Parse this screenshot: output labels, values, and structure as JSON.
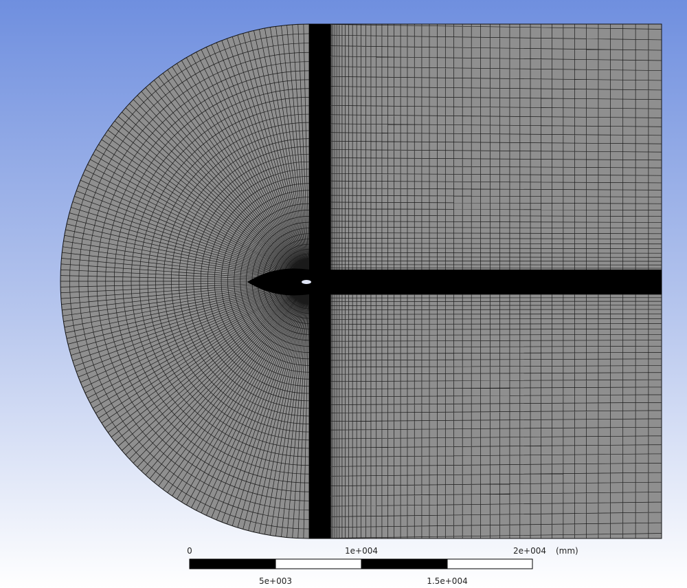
{
  "scale_bar": {
    "top_labels": [
      "0",
      "1e+004",
      "2e+004"
    ],
    "unit": "(mm)",
    "bottom_labels": [
      "5e+003",
      "1.5e+004"
    ]
  }
}
